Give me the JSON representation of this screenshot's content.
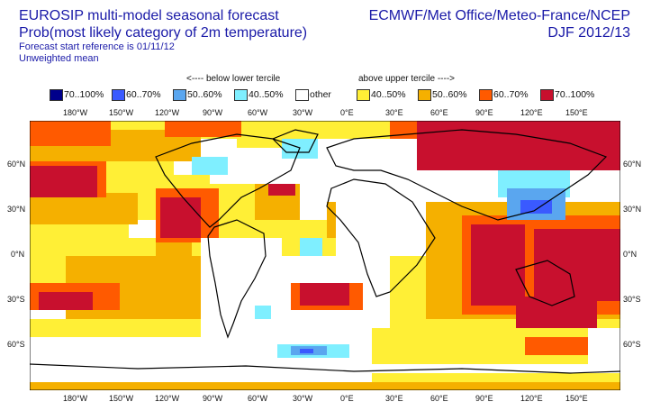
{
  "header": {
    "title_line1": "EUROSIP multi-model seasonal forecast",
    "title_line2": "Prob(most likely category of 2m temperature)",
    "start_ref": "Forecast start reference is 01/11/12",
    "weighting": "Unweighted mean",
    "centres": "ECMWF/Met Office/Meteo-France/NCEP",
    "season": "DJF 2012/13"
  },
  "tercile_labels": {
    "below": "<---- below lower tercile",
    "above": "above upper tercile ---->"
  },
  "legend": [
    {
      "label": "70..100%",
      "color": "#00008b"
    },
    {
      "label": "60..70%",
      "color": "#3a5aff"
    },
    {
      "label": "50..60%",
      "color": "#5aa6ef"
    },
    {
      "label": "40..50%",
      "color": "#7fefff"
    },
    {
      "label": "other",
      "color": "#ffffff"
    },
    {
      "label": "40..50%",
      "color": "#ffef36"
    },
    {
      "label": "50..60%",
      "color": "#f5b000"
    },
    {
      "label": "60..70%",
      "color": "#ff5a00"
    },
    {
      "label": "70..100%",
      "color": "#c8102e"
    }
  ],
  "axes": {
    "lon_ticks": [
      "180°W",
      "150°W",
      "120°W",
      "90°W",
      "60°W",
      "30°W",
      "0°E",
      "30°E",
      "60°E",
      "90°E",
      "120°E",
      "150°E"
    ],
    "lat_ticks_left": [
      "60°N",
      "30°N",
      "0°N",
      "30°S",
      "60°S"
    ],
    "lat_ticks_right": [
      "60°N",
      "30°N",
      "0°N",
      "30°S",
      "60°S"
    ]
  }
}
